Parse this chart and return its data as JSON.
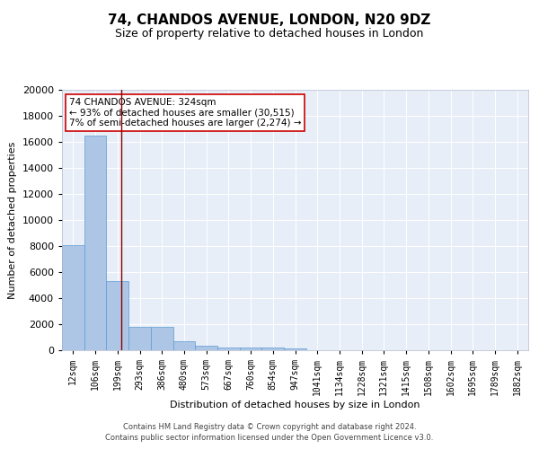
{
  "title": "74, CHANDOS AVENUE, LONDON, N20 9DZ",
  "subtitle": "Size of property relative to detached houses in London",
  "xlabel": "Distribution of detached houses by size in London",
  "ylabel": "Number of detached properties",
  "categories": [
    "12sqm",
    "106sqm",
    "199sqm",
    "293sqm",
    "386sqm",
    "480sqm",
    "573sqm",
    "667sqm",
    "760sqm",
    "854sqm",
    "947sqm",
    "1041sqm",
    "1134sqm",
    "1228sqm",
    "1321sqm",
    "1415sqm",
    "1508sqm",
    "1602sqm",
    "1695sqm",
    "1789sqm",
    "1882sqm"
  ],
  "values": [
    8100,
    16500,
    5300,
    1800,
    1800,
    700,
    320,
    230,
    210,
    190,
    170,
    0,
    0,
    0,
    0,
    0,
    0,
    0,
    0,
    0,
    0
  ],
  "bar_color": "#adc6e5",
  "bar_edge_color": "#5b9bd5",
  "vline_x": 2.18,
  "vline_color": "#8b0000",
  "annotation_text": "74 CHANDOS AVENUE: 324sqm\n← 93% of detached houses are smaller (30,515)\n7% of semi-detached houses are larger (2,274) →",
  "annotation_box_color": "#ffffff",
  "annotation_box_edge": "#cc0000",
  "background_color": "#e8eef7",
  "footer_line1": "Contains HM Land Registry data © Crown copyright and database right 2024.",
  "footer_line2": "Contains public sector information licensed under the Open Government Licence v3.0.",
  "ylim": [
    0,
    20000
  ],
  "yticks": [
    0,
    2000,
    4000,
    6000,
    8000,
    10000,
    12000,
    14000,
    16000,
    18000,
    20000
  ],
  "title_fontsize": 11,
  "subtitle_fontsize": 9,
  "xlabel_fontsize": 8,
  "ylabel_fontsize": 8,
  "tick_fontsize": 8,
  "xtick_fontsize": 7
}
